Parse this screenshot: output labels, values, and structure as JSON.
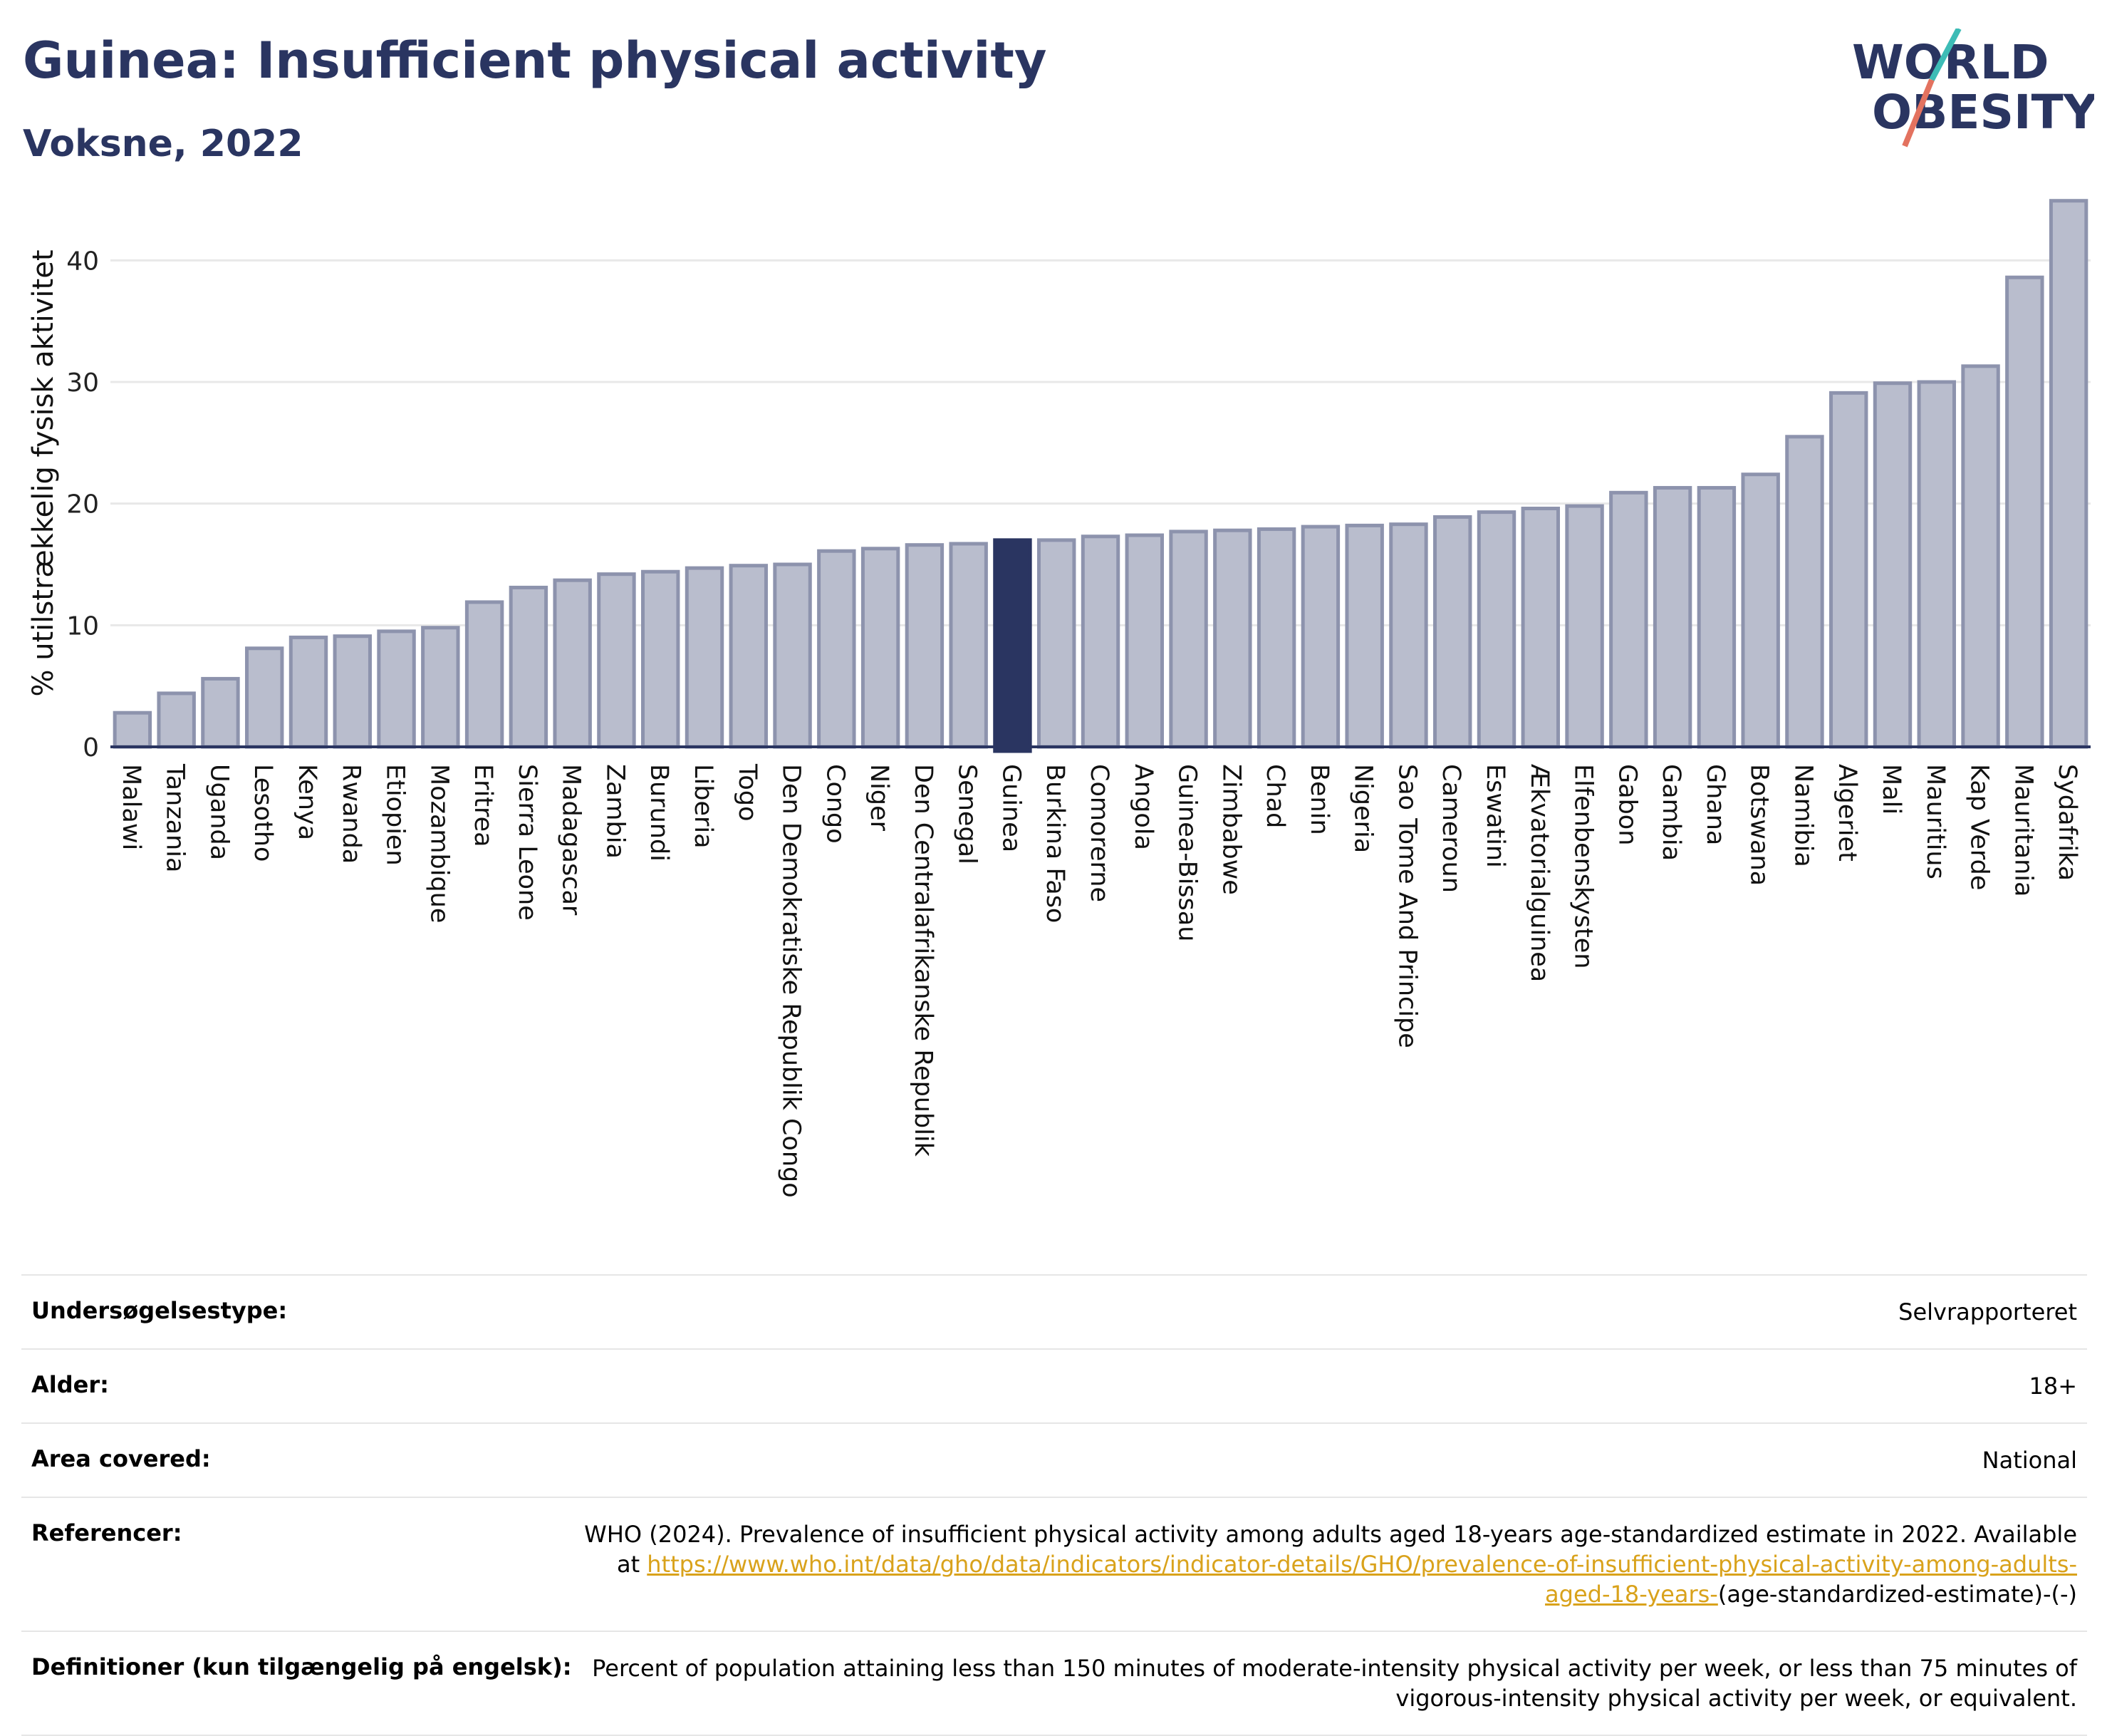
{
  "header": {
    "title": "Guinea: Insufficient physical activity",
    "subtitle": "Voksne, 2022"
  },
  "logo": {
    "line1": "WORLD",
    "line2": "OBESITY",
    "icon": "world-obesity-logo"
  },
  "chart_data": {
    "type": "bar",
    "ylabel": "% utilstrækkelig fysisk aktivitet",
    "xlabel": "",
    "ylim": [
      0,
      45
    ],
    "yticks": [
      0,
      10,
      20,
      30,
      40
    ],
    "grid": true,
    "highlight": "Guinea",
    "colors": {
      "bar": "#b9bdcd",
      "bar_edge": "#8d93ad",
      "highlight": "#2a3561",
      "grid": "#e8e8e8"
    },
    "categories": [
      "Malawi",
      "Tanzania",
      "Uganda",
      "Lesotho",
      "Kenya",
      "Rwanda",
      "Etiopien",
      "Mozambique",
      "Eritrea",
      "Sierra Leone",
      "Madagascar",
      "Zambia",
      "Burundi",
      "Liberia",
      "Togo",
      "Den Demokratiske Republik Congo",
      "Congo",
      "Niger",
      "Den Centralafrikanske Republik",
      "Senegal",
      "Guinea",
      "Burkina Faso",
      "Comorerne",
      "Angola",
      "Guinea-Bissau",
      "Zimbabwe",
      "Chad",
      "Benin",
      "Nigeria",
      "Sao Tome And Principe",
      "Cameroun",
      "Eswatini",
      "Ækvatorialguinea",
      "Elfenbenskysten",
      "Gabon",
      "Gambia",
      "Ghana",
      "Botswana",
      "Namibia",
      "Algeriet",
      "Mali",
      "Mauritius",
      "Kap Verde",
      "Mauritania",
      "Sydafrika"
    ],
    "values": [
      2.8,
      4.4,
      5.6,
      8.1,
      9.0,
      9.1,
      9.5,
      9.8,
      11.9,
      13.1,
      13.7,
      14.2,
      14.4,
      14.7,
      14.9,
      15.0,
      16.1,
      16.3,
      16.6,
      16.7,
      17.0,
      17.0,
      17.3,
      17.4,
      17.7,
      17.8,
      17.9,
      18.1,
      18.2,
      18.3,
      18.9,
      19.3,
      19.6,
      19.8,
      20.9,
      21.3,
      21.3,
      22.4,
      25.5,
      29.1,
      29.9,
      30.0,
      31.3,
      38.6,
      44.9
    ]
  },
  "meta": {
    "rows": [
      {
        "label": "Undersøgelsestype:",
        "value": "Selvrapporteret"
      },
      {
        "label": "Alder:",
        "value": "18+"
      },
      {
        "label": "Area covered:",
        "value": "National"
      }
    ],
    "reference": {
      "label": "Referencer:",
      "text": "WHO (2024). Prevalence of insufficient physical activity among adults aged 18-years age-standardized estimate in 2022. Available at ",
      "link": "https://www.who.int/data/gho/data/indicators/indicator-details/GHO/prevalence-of-insufficient-physical-activity-among-adults-aged-18-years-",
      "suffix": "(age-standardized-estimate)-(-)"
    },
    "definition": {
      "label": "Definitioner (kun tilgængelig på engelsk):",
      "value": "Percent of population attaining less than 150 minutes of moderate-intensity physical activity per week, or less than 75 minutes of vigorous-intensity physical activity per week, or equivalent."
    }
  }
}
